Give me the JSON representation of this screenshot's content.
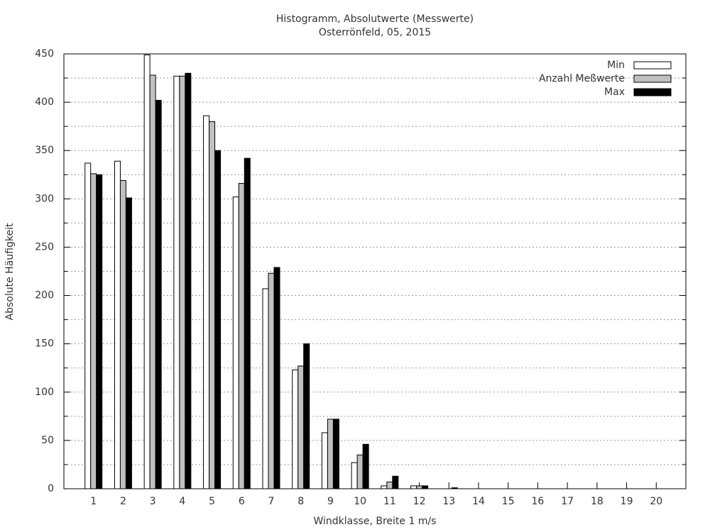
{
  "chart_data": {
    "type": "bar",
    "title": "Histogramm, Absolutwerte (Messwerte)",
    "subtitle": "Osterrönfeld, 05, 2015",
    "x_label": "Windklasse, Breite 1 m/s",
    "y_label": "Absolute Häufigkeit",
    "categories": [
      "1",
      "2",
      "3",
      "4",
      "5",
      "6",
      "7",
      "8",
      "9",
      "10",
      "11",
      "12",
      "13",
      "14",
      "15",
      "16",
      "17",
      "18",
      "19",
      "20"
    ],
    "series": [
      {
        "name": "Min",
        "color": "#ffffff",
        "values": [
          337,
          339,
          449,
          427,
          386,
          302,
          207,
          123,
          58,
          27,
          3,
          3,
          0,
          0,
          0,
          0,
          0,
          0,
          0,
          0
        ]
      },
      {
        "name": "Anzahl Meßwerte",
        "color": "#c0c0c0",
        "values": [
          326,
          319,
          428,
          427,
          380,
          316,
          223,
          127,
          72,
          35,
          7,
          3,
          0,
          0,
          0,
          0,
          0,
          0,
          0,
          0
        ]
      },
      {
        "name": "Max",
        "color": "#000000",
        "values": [
          325,
          301,
          402,
          430,
          350,
          342,
          229,
          150,
          72,
          46,
          13,
          3,
          1,
          0,
          0,
          0,
          0,
          0,
          0,
          0
        ]
      }
    ],
    "ylim": [
      0,
      450
    ],
    "yticks": [
      0,
      50,
      100,
      150,
      200,
      250,
      300,
      350,
      400,
      450
    ],
    "y_minor_ticks": [
      25,
      75,
      125,
      175,
      225,
      275,
      325,
      375,
      425
    ],
    "grid": true,
    "legend": "top-right"
  }
}
